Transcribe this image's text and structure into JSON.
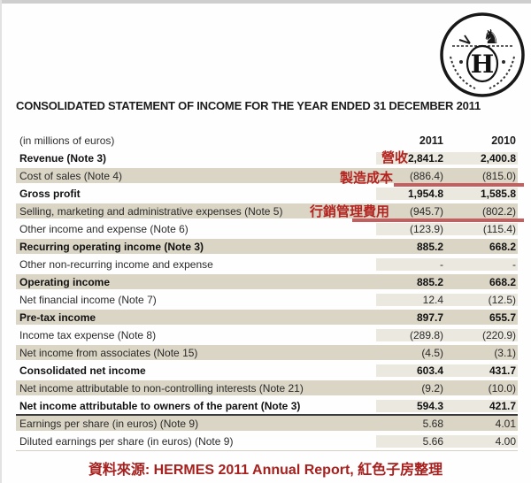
{
  "title": "CONSOLIDATED STATEMENT OF INCOME FOR THE YEAR ENDED 31 DECEMBER 2011",
  "logo": {
    "letter": "H",
    "horse_glyph": "♞"
  },
  "table": {
    "unit_label": "(in millions of euros)",
    "col_2011": "2011",
    "col_2010": "2010",
    "rows": [
      {
        "label": "Revenue (Note 3)",
        "v2011": "2,841.2",
        "v2010": "2,400.8",
        "bold": true,
        "shaded": false,
        "annotation": "營收",
        "underline": false,
        "strong_border": false
      },
      {
        "label": "Cost of sales (Note 4)",
        "v2011": "(886.4)",
        "v2010": "(815.0)",
        "bold": false,
        "shaded": true,
        "annotation": "製造成本",
        "underline": true,
        "strong_border": false
      },
      {
        "label": "Gross profit",
        "v2011": "1,954.8",
        "v2010": "1,585.8",
        "bold": true,
        "shaded": false,
        "annotation": null,
        "underline": false,
        "strong_border": false
      },
      {
        "label": "Selling, marketing and administrative expenses (Note 5)",
        "v2011": "(945.7)",
        "v2010": "(802.2)",
        "bold": false,
        "shaded": true,
        "annotation": "行銷管理費用",
        "underline": true,
        "strong_border": false
      },
      {
        "label": "Other income and expense (Note 6)",
        "v2011": "(123.9)",
        "v2010": "(115.4)",
        "bold": false,
        "shaded": false,
        "annotation": null,
        "underline": false,
        "strong_border": false
      },
      {
        "label": "Recurring operating income (Note 3)",
        "v2011": "885.2",
        "v2010": "668.2",
        "bold": true,
        "shaded": true,
        "annotation": null,
        "underline": false,
        "strong_border": false
      },
      {
        "label": "Other non-recurring income and expense",
        "v2011": "-",
        "v2010": "-",
        "bold": false,
        "shaded": false,
        "annotation": null,
        "underline": false,
        "strong_border": false
      },
      {
        "label": "Operating income",
        "v2011": "885.2",
        "v2010": "668.2",
        "bold": true,
        "shaded": true,
        "annotation": null,
        "underline": false,
        "strong_border": false
      },
      {
        "label": "Net financial income (Note 7)",
        "v2011": "12.4",
        "v2010": "(12.5)",
        "bold": false,
        "shaded": false,
        "annotation": null,
        "underline": false,
        "strong_border": false
      },
      {
        "label": "Pre-tax income",
        "v2011": "897.7",
        "v2010": "655.7",
        "bold": true,
        "shaded": true,
        "annotation": null,
        "underline": false,
        "strong_border": false
      },
      {
        "label": "Income tax expense (Note 8)",
        "v2011": "(289.8)",
        "v2010": "(220.9)",
        "bold": false,
        "shaded": false,
        "annotation": null,
        "underline": false,
        "strong_border": false
      },
      {
        "label": "Net income from associates (Note 15)",
        "v2011": "(4.5)",
        "v2010": "(3.1)",
        "bold": false,
        "shaded": true,
        "annotation": null,
        "underline": false,
        "strong_border": false
      },
      {
        "label": "Consolidated net income",
        "v2011": "603.4",
        "v2010": "431.7",
        "bold": true,
        "shaded": false,
        "annotation": null,
        "underline": false,
        "strong_border": false
      },
      {
        "label": "Net income attributable to non-controlling interests (Note 21)",
        "v2011": "(9.2)",
        "v2010": "(10.0)",
        "bold": false,
        "shaded": true,
        "annotation": null,
        "underline": false,
        "strong_border": false
      },
      {
        "label": "Net income attributable to owners of the parent (Note 3)",
        "v2011": "594.3",
        "v2010": "421.7",
        "bold": true,
        "shaded": false,
        "annotation": null,
        "underline": false,
        "strong_border": true
      },
      {
        "label": "Earnings per share (in euros) (Note 9)",
        "v2011": "5.68",
        "v2010": "4.01",
        "bold": false,
        "shaded": true,
        "annotation": null,
        "underline": false,
        "strong_border": false
      },
      {
        "label": "Diluted earnings per share (in euros) (Note 9)",
        "v2011": "5.66",
        "v2010": "4.00",
        "bold": false,
        "shaded": false,
        "annotation": null,
        "underline": false,
        "strong_border": false
      }
    ]
  },
  "footer": {
    "source_text": "資料來源: HERMES 2011 Annual Report, 紅色子房整理"
  },
  "colors": {
    "annotation_red": "#b3231f",
    "underline_red": "#c45e5f",
    "footer_red": "#a6201e",
    "shaded_row_beige": "#dbd5c6",
    "light_cell_beige": "#ebe8df",
    "strong_rule_dark": "#3a3a3a"
  }
}
